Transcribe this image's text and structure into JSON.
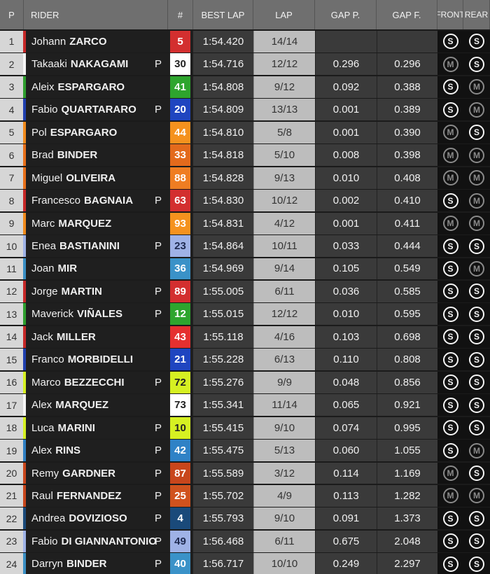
{
  "table": {
    "headers": [
      "P",
      "RIDER",
      "#",
      "BEST LAP",
      "LAP",
      "GAP P.",
      "GAP F.",
      "FRONT",
      "REAR"
    ],
    "rows": [
      {
        "pos": 1,
        "first": "Johann",
        "last": "ZARCO",
        "stripe": "#c62828",
        "number": 5,
        "box": "#d32f2f",
        "ink": "#ffffff",
        "best_lap": "1:54.420",
        "lap": "14/14",
        "front": "S",
        "rear": "S"
      },
      {
        "pos": 2,
        "first": "Takaaki",
        "last": "NAKAGAMI",
        "flag": "P",
        "stripe": "#f5f5f5",
        "number": 30,
        "box": "#ffffff",
        "ink": "#222222",
        "best_lap": "1:54.716",
        "lap": "12/12",
        "gap_p": "0.296",
        "gap_f": "0.296",
        "front": "M",
        "rear": "S"
      },
      {
        "pos": 3,
        "first": "Aleix",
        "last": "ESPARGARO",
        "stripe": "#2e9e2e",
        "number": 41,
        "box": "#2ea52e",
        "ink": "#ffffff",
        "best_lap": "1:54.808",
        "lap": "9/12",
        "gap_p": "0.092",
        "gap_f": "0.388",
        "front": "S",
        "rear": "M"
      },
      {
        "pos": 4,
        "first": "Fabio",
        "last": "QUARTARARO",
        "flag": "P",
        "stripe": "#1f3fae",
        "number": 20,
        "box": "#1f45c0",
        "ink": "#ffffff",
        "best_lap": "1:54.809",
        "lap": "13/13",
        "gap_p": "0.001",
        "gap_f": "0.389",
        "front": "S",
        "rear": "M"
      },
      {
        "pos": 5,
        "first": "Pol",
        "last": "ESPARGARO",
        "stripe": "#f08a1c",
        "number": 44,
        "box": "#f5921e",
        "ink": "#ffffff",
        "best_lap": "1:54.810",
        "lap": "5/8",
        "gap_p": "0.001",
        "gap_f": "0.390",
        "front": "M",
        "rear": "S"
      },
      {
        "pos": 6,
        "first": "Brad",
        "last": "BINDER",
        "stripe": "#e8701a",
        "number": 33,
        "box": "#e36a1c",
        "ink": "#ffffff",
        "best_lap": "1:54.818",
        "lap": "5/10",
        "gap_p": "0.008",
        "gap_f": "0.398",
        "front": "M",
        "rear": "M"
      },
      {
        "pos": 7,
        "first": "Miguel",
        "last": "OLIVEIRA",
        "stripe": "#e8701a",
        "number": 88,
        "box": "#ef7d22",
        "ink": "#ffffff",
        "best_lap": "1:54.828",
        "lap": "9/13",
        "gap_p": "0.010",
        "gap_f": "0.408",
        "front": "M",
        "rear": "M"
      },
      {
        "pos": 8,
        "first": "Francesco",
        "last": "BAGNAIA",
        "flag": "P",
        "stripe": "#c62828",
        "number": 63,
        "box": "#d32f2f",
        "ink": "#ffffff",
        "best_lap": "1:54.830",
        "lap": "10/12",
        "gap_p": "0.002",
        "gap_f": "0.410",
        "front": "S",
        "rear": "M"
      },
      {
        "pos": 9,
        "first": "Marc",
        "last": "MARQUEZ",
        "stripe": "#f08a1c",
        "number": 93,
        "box": "#f5921e",
        "ink": "#ffffff",
        "best_lap": "1:54.831",
        "lap": "4/12",
        "gap_p": "0.001",
        "gap_f": "0.411",
        "front": "M",
        "rear": "M"
      },
      {
        "pos": 10,
        "first": "Enea",
        "last": "BASTIANINI",
        "flag": "P",
        "stripe": "#9fb2e6",
        "number": 23,
        "box": "#9fb2e6",
        "ink": "#1f2a50",
        "best_lap": "1:54.864",
        "lap": "10/11",
        "gap_p": "0.033",
        "gap_f": "0.444",
        "front": "S",
        "rear": "S"
      },
      {
        "pos": 11,
        "first": "Joan",
        "last": "MIR",
        "stripe": "#3a8fc4",
        "number": 36,
        "box": "#3a92c8",
        "ink": "#ffffff",
        "best_lap": "1:54.969",
        "lap": "9/14",
        "gap_p": "0.105",
        "gap_f": "0.549",
        "front": "S",
        "rear": "M"
      },
      {
        "pos": 12,
        "first": "Jorge",
        "last": "MARTIN",
        "flag": "P",
        "stripe": "#c62828",
        "number": 89,
        "box": "#d32f2f",
        "ink": "#ffffff",
        "best_lap": "1:55.005",
        "lap": "6/11",
        "gap_p": "0.036",
        "gap_f": "0.585",
        "front": "S",
        "rear": "S"
      },
      {
        "pos": 13,
        "first": "Maverick",
        "last": "VIÑALES",
        "flag": "P",
        "stripe": "#2e9e2e",
        "number": 12,
        "box": "#2ea52e",
        "ink": "#ffffff",
        "best_lap": "1:55.015",
        "lap": "12/12",
        "gap_p": "0.010",
        "gap_f": "0.595",
        "front": "S",
        "rear": "S"
      },
      {
        "pos": 14,
        "first": "Jack",
        "last": "MILLER",
        "stripe": "#c62828",
        "number": 43,
        "box": "#e53030",
        "ink": "#ffffff",
        "best_lap": "1:55.118",
        "lap": "4/16",
        "gap_p": "0.103",
        "gap_f": "0.698",
        "front": "S",
        "rear": "S"
      },
      {
        "pos": 15,
        "first": "Franco",
        "last": "MORBIDELLI",
        "stripe": "#1f3fae",
        "number": 21,
        "box": "#1f45c0",
        "ink": "#ffffff",
        "best_lap": "1:55.228",
        "lap": "6/13",
        "gap_p": "0.110",
        "gap_f": "0.808",
        "front": "S",
        "rear": "S"
      },
      {
        "pos": 16,
        "first": "Marco",
        "last": "BEZZECCHI",
        "flag": "P",
        "stripe": "#d6f022",
        "number": 72,
        "box": "#d6f022",
        "ink": "#222222",
        "best_lap": "1:55.276",
        "lap": "9/9",
        "gap_p": "0.048",
        "gap_f": "0.856",
        "front": "S",
        "rear": "S"
      },
      {
        "pos": 17,
        "first": "Alex",
        "last": "MARQUEZ",
        "stripe": "#f5f5f5",
        "number": 73,
        "box": "#ffffff",
        "ink": "#222222",
        "best_lap": "1:55.341",
        "lap": "11/14",
        "gap_p": "0.065",
        "gap_f": "0.921",
        "front": "S",
        "rear": "S"
      },
      {
        "pos": 18,
        "first": "Luca",
        "last": "MARINI",
        "flag": "P",
        "stripe": "#d6f022",
        "number": 10,
        "box": "#d6f022",
        "ink": "#222222",
        "best_lap": "1:55.415",
        "lap": "9/10",
        "gap_p": "0.074",
        "gap_f": "0.995",
        "front": "S",
        "rear": "S"
      },
      {
        "pos": 19,
        "first": "Alex",
        "last": "RINS",
        "flag": "P",
        "stripe": "#2f7fc2",
        "number": 42,
        "box": "#2f82c6",
        "ink": "#ffffff",
        "best_lap": "1:55.475",
        "lap": "5/13",
        "gap_p": "0.060",
        "gap_f": "1.055",
        "front": "S",
        "rear": "M"
      },
      {
        "pos": 20,
        "first": "Remy",
        "last": "GARDNER",
        "flag": "P",
        "stripe": "#c8461c",
        "number": 87,
        "box": "#c8461c",
        "ink": "#ffffff",
        "best_lap": "1:55.589",
        "lap": "3/12",
        "gap_p": "0.114",
        "gap_f": "1.169",
        "front": "M",
        "rear": "S"
      },
      {
        "pos": 21,
        "first": "Raul",
        "last": "FERNANDEZ",
        "flag": "P",
        "stripe": "#c8461c",
        "number": 25,
        "box": "#d0521e",
        "ink": "#ffffff",
        "best_lap": "1:55.702",
        "lap": "4/9",
        "gap_p": "0.113",
        "gap_f": "1.282",
        "front": "M",
        "rear": "M"
      },
      {
        "pos": 22,
        "first": "Andrea",
        "last": "DOVIZIOSO",
        "flag": "P",
        "stripe": "#1a4a7a",
        "number": 4,
        "box": "#1a4a7a",
        "ink": "#ffffff",
        "best_lap": "1:55.793",
        "lap": "9/10",
        "gap_p": "0.091",
        "gap_f": "1.373",
        "front": "S",
        "rear": "S"
      },
      {
        "pos": 23,
        "first": "Fabio",
        "last": "DI GIANNANTONIO",
        "flag": "P",
        "stripe": "#9fb2e6",
        "number": 49,
        "box": "#9fb2e6",
        "ink": "#1f2a50",
        "best_lap": "1:56.468",
        "lap": "6/11",
        "gap_p": "0.675",
        "gap_f": "2.048",
        "front": "S",
        "rear": "S"
      },
      {
        "pos": 24,
        "first": "Darryn",
        "last": "BINDER",
        "flag": "P",
        "stripe": "#3a8fc4",
        "number": 40,
        "box": "#3a92c8",
        "ink": "#ffffff",
        "best_lap": "1:56.717",
        "lap": "10/10",
        "gap_p": "0.249",
        "gap_f": "2.297",
        "front": "S",
        "rear": "S"
      }
    ]
  }
}
